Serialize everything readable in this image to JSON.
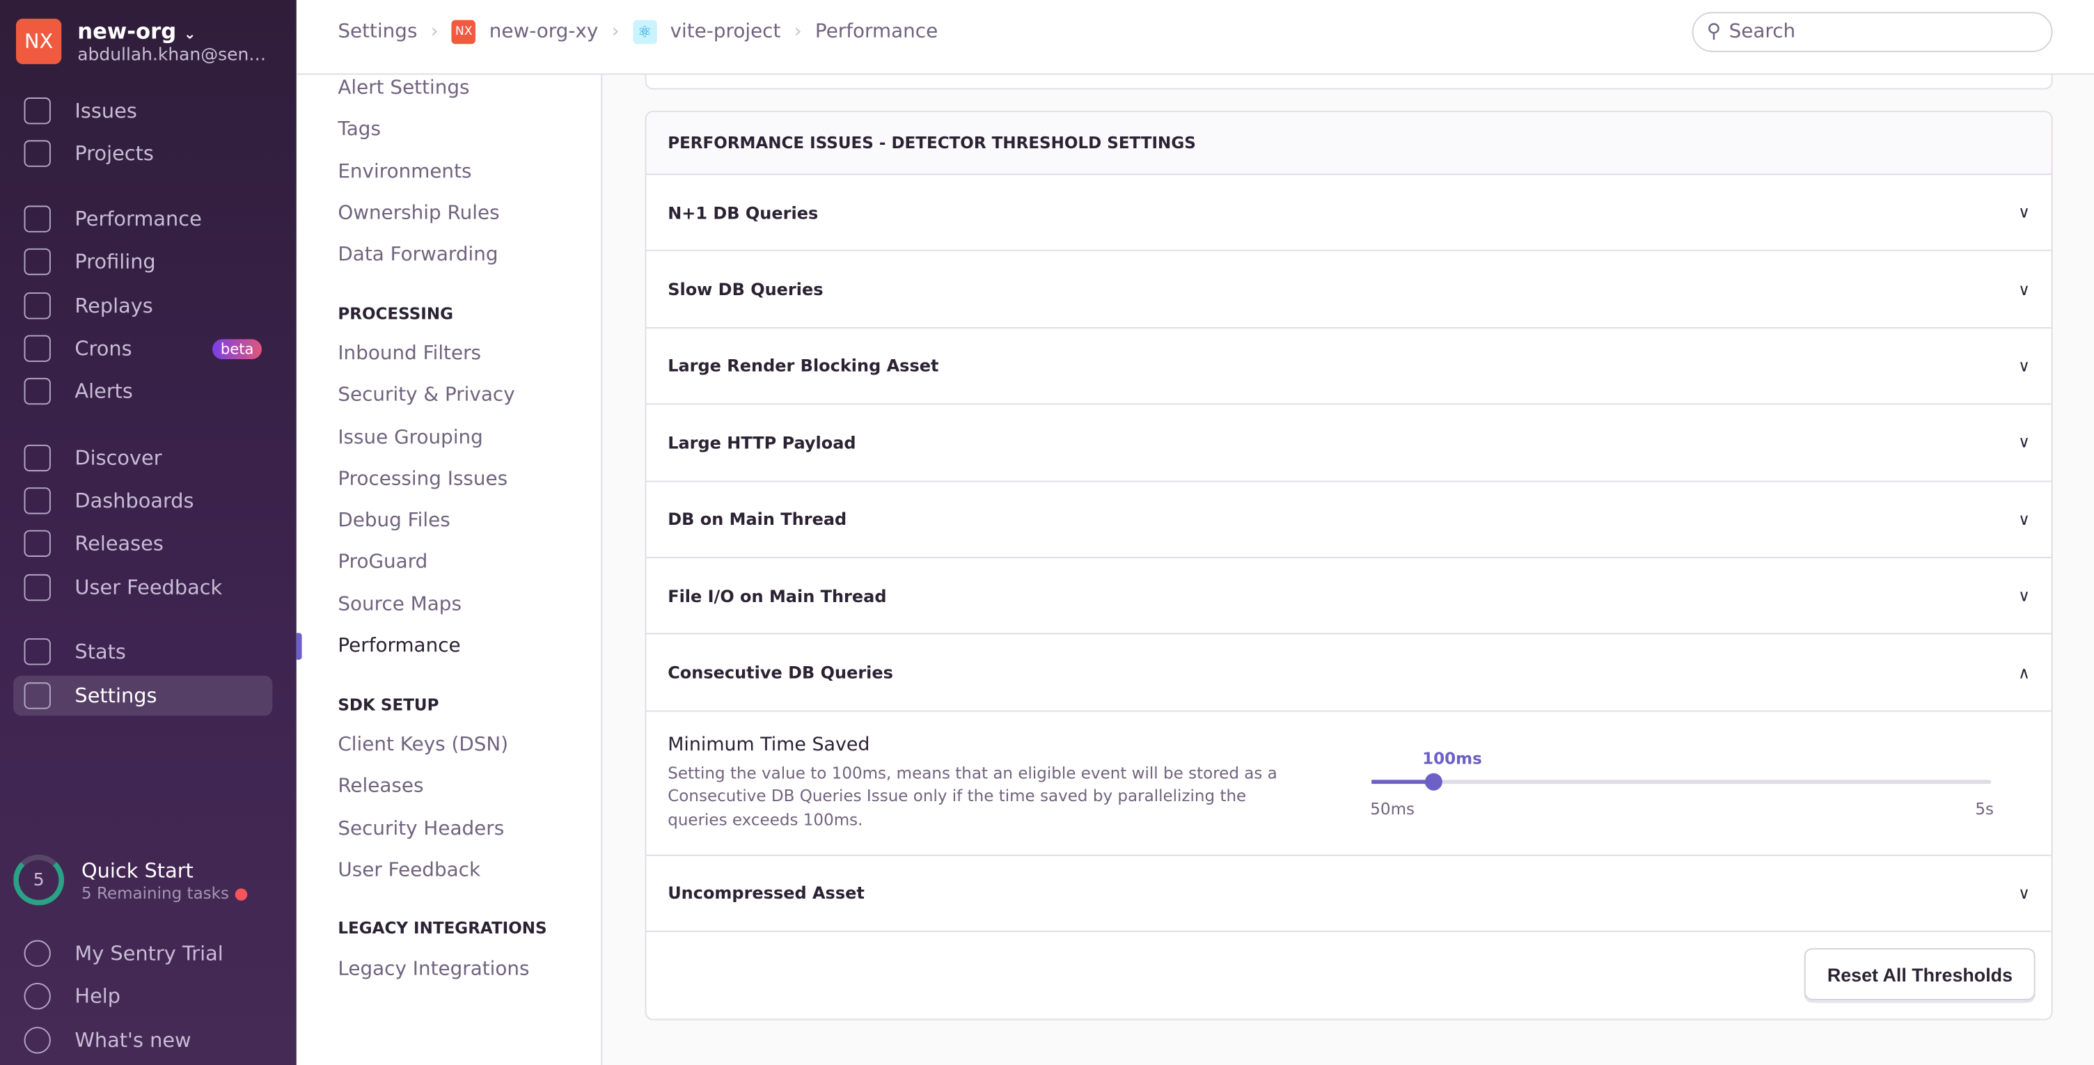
{
  "org": {
    "logo": "NX",
    "name": "new-org",
    "email": "abdullah.khan@sen…"
  },
  "nav": [
    {
      "label": "Issues",
      "icon": "issues-icon"
    },
    {
      "label": "Projects",
      "icon": "projects-icon"
    },
    {
      "label": "Performance",
      "icon": "lightning-icon"
    },
    {
      "label": "Profiling",
      "icon": "profiling-icon"
    },
    {
      "label": "Replays",
      "icon": "play-icon"
    },
    {
      "label": "Crons",
      "icon": "crons-icon",
      "badge": "beta"
    },
    {
      "label": "Alerts",
      "icon": "siren-icon"
    },
    {
      "label": "Discover",
      "icon": "telescope-icon"
    },
    {
      "label": "Dashboards",
      "icon": "dashboard-icon"
    },
    {
      "label": "Releases",
      "icon": "releases-icon"
    },
    {
      "label": "User Feedback",
      "icon": "megaphone-icon"
    },
    {
      "label": "Stats",
      "icon": "stats-icon"
    },
    {
      "label": "Settings",
      "icon": "gear-icon"
    }
  ],
  "quickstart": {
    "count": "5",
    "title": "Quick Start",
    "subtitle": "5 Remaining tasks"
  },
  "bottom_nav": [
    {
      "label": "My Sentry Trial"
    },
    {
      "label": "Help"
    },
    {
      "label": "What's new"
    }
  ],
  "breadcrumb": [
    "Settings",
    "new-org-xy",
    "vite-project",
    "Performance"
  ],
  "breadcrumb_org_badge": "NX",
  "search": {
    "placeholder": "Search"
  },
  "settings_nav": {
    "items_top": [
      "Alert Settings",
      "Tags",
      "Environments",
      "Ownership Rules",
      "Data Forwarding"
    ],
    "processing_header": "PROCESSING",
    "processing": [
      "Inbound Filters",
      "Security & Privacy",
      "Issue Grouping",
      "Processing Issues",
      "Debug Files",
      "ProGuard",
      "Source Maps",
      "Performance"
    ],
    "sdk_header": "SDK SETUP",
    "sdk": [
      "Client Keys (DSN)",
      "Releases",
      "Security Headers",
      "User Feedback"
    ],
    "legacy_header": "LEGACY INTEGRATIONS",
    "legacy": [
      "Legacy Integrations"
    ]
  },
  "panel": {
    "title": "PERFORMANCE ISSUES - DETECTOR THRESHOLD SETTINGS",
    "rows": [
      "N+1 DB Queries",
      "Slow DB Queries",
      "Large Render Blocking Asset",
      "Large HTTP Payload",
      "DB on Main Thread",
      "File I/O on Main Thread",
      "Consecutive DB Queries"
    ],
    "expanded": {
      "title": "Minimum Time Saved",
      "description": "Setting the value to 100ms, means that an eligible event will be stored as a Consecutive DB Queries Issue only if the time saved by parallelizing the queries exceeds 100ms.",
      "value_label": "100ms",
      "min_label": "50ms",
      "max_label": "5s",
      "fraction": 0.1
    },
    "last_row": "Uncompressed Asset",
    "reset_label": "Reset All Thresholds"
  },
  "colors": {
    "accent": "#6c5fc7",
    "org": "#f05b40"
  }
}
